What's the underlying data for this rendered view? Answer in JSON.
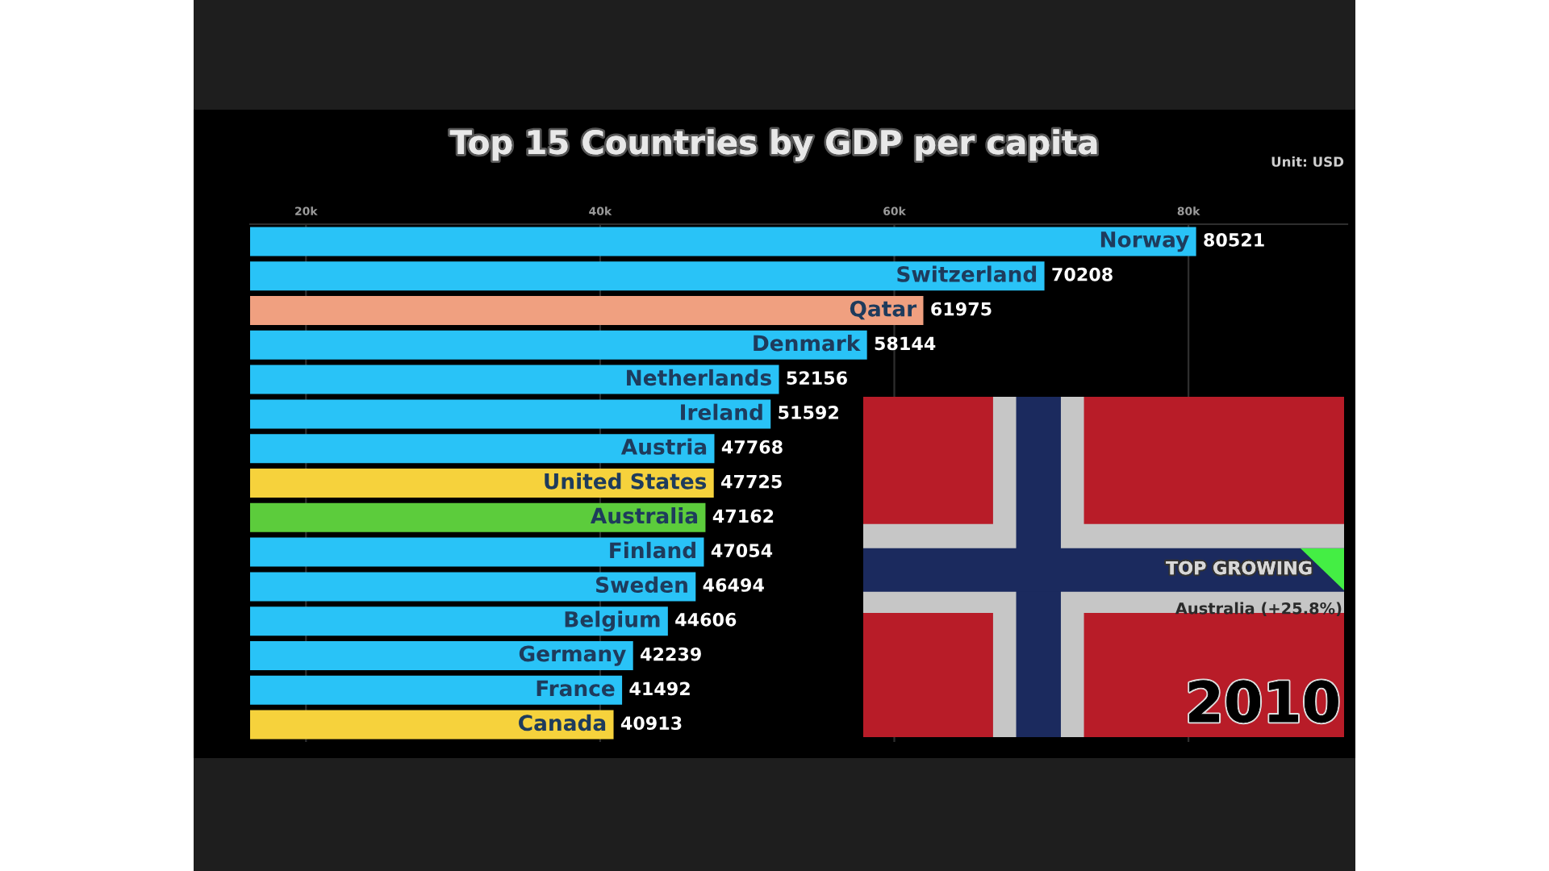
{
  "chart_data": {
    "type": "bar",
    "orientation": "horizontal",
    "title": "Top 15 Countries by GDP per capita",
    "annotations": [
      "Unit: USD",
      "TOP GROWING",
      "Australia (+25.8%)",
      "2010"
    ],
    "categories": [
      "Norway",
      "Switzerland",
      "Qatar",
      "Denmark",
      "Netherlands",
      "Ireland",
      "Austria",
      "United States",
      "Australia",
      "Finland",
      "Sweden",
      "Belgium",
      "Germany",
      "France",
      "Canada"
    ],
    "values": [
      80521,
      70208,
      61975,
      58144,
      52156,
      51592,
      47768,
      47725,
      47162,
      47054,
      46494,
      44606,
      42239,
      41492,
      40913
    ],
    "colors": [
      "#29c3f7",
      "#29c3f7",
      "#f0a080",
      "#29c3f7",
      "#29c3f7",
      "#29c3f7",
      "#29c3f7",
      "#f6d23c",
      "#5ccc3c",
      "#29c3f7",
      "#29c3f7",
      "#29c3f7",
      "#29c3f7",
      "#29c3f7",
      "#f6d23c"
    ],
    "xlim": [
      16200,
      90800
    ],
    "xticks": [
      {
        "value": 20000,
        "label": "20k"
      },
      {
        "value": 40000,
        "label": "40k"
      },
      {
        "value": 60000,
        "label": "60k"
      },
      {
        "value": 80000,
        "label": "80k"
      }
    ],
    "grid": "x",
    "data_labels": true
  }
}
